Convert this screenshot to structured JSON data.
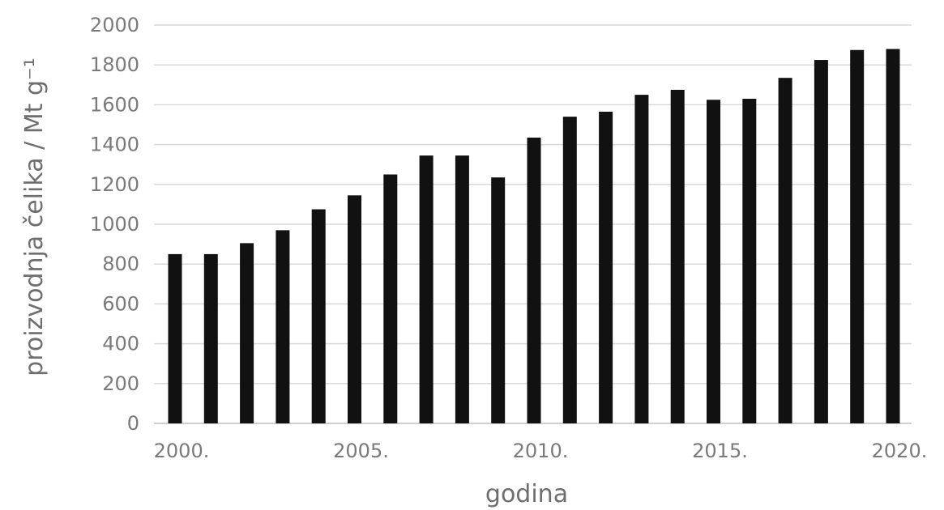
{
  "chart_data": {
    "type": "bar",
    "title": "",
    "xlabel": "godina",
    "ylabel": "proizvodnja čelika / Mt g⁻¹",
    "ylim": [
      0,
      2000
    ],
    "yticks": [
      0,
      200,
      400,
      600,
      800,
      1000,
      1200,
      1400,
      1600,
      1800,
      2000
    ],
    "xtick_labels": [
      {
        "year": 2000,
        "label": "2000."
      },
      {
        "year": 2005,
        "label": "2005."
      },
      {
        "year": 2010,
        "label": "2010."
      },
      {
        "year": 2015,
        "label": "2015."
      },
      {
        "year": 2020,
        "label": "2020."
      }
    ],
    "grid": true,
    "bar_color": "#111111",
    "categories": [
      2000,
      2001,
      2002,
      2003,
      2004,
      2005,
      2006,
      2007,
      2008,
      2009,
      2010,
      2011,
      2012,
      2013,
      2014,
      2015,
      2016,
      2017,
      2018,
      2019,
      2020
    ],
    "values": [
      850,
      850,
      905,
      970,
      1075,
      1145,
      1250,
      1345,
      1345,
      1235,
      1435,
      1540,
      1565,
      1650,
      1675,
      1625,
      1630,
      1735,
      1825,
      1875,
      1880
    ]
  }
}
